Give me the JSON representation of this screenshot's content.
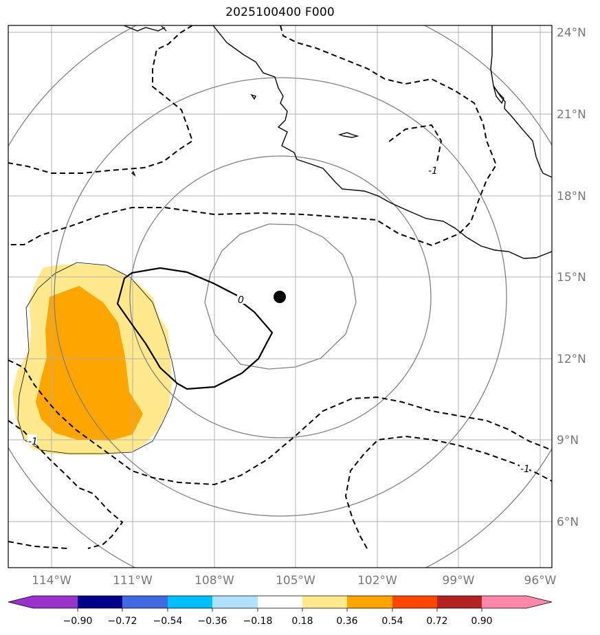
{
  "title": "2025100400 F000",
  "map": {
    "lon_ticks": [
      "114°W",
      "111°W",
      "108°W",
      "105°W",
      "102°W",
      "99°W",
      "96°W"
    ],
    "lat_ticks": [
      "24°N",
      "21°N",
      "18°N",
      "15°N",
      "12°N",
      "9°N",
      "6°N"
    ],
    "contour_labels": [
      "0",
      "-1",
      "-1",
      "-1"
    ],
    "center_marker": "storm-center-dot",
    "colors": {
      "coastline": "#000000",
      "grid": "#b0b0b0",
      "range_rings": "#808080",
      "fill_low": "#ffe98c",
      "fill_high": "#ffa500"
    }
  },
  "colorbar": {
    "ticks": [
      "−0.90",
      "−0.72",
      "−0.54",
      "−0.36",
      "−0.18",
      "0.18",
      "0.36",
      "0.54",
      "0.72",
      "0.90"
    ],
    "colors": [
      "#9932cc",
      "#00008b",
      "#4169e1",
      "#00bfff",
      "#b0e2ff",
      "#ffffff",
      "#ffe98c",
      "#ffa500",
      "#ff4500",
      "#b22222",
      "#ff88aa",
      "#ff88aa"
    ]
  }
}
